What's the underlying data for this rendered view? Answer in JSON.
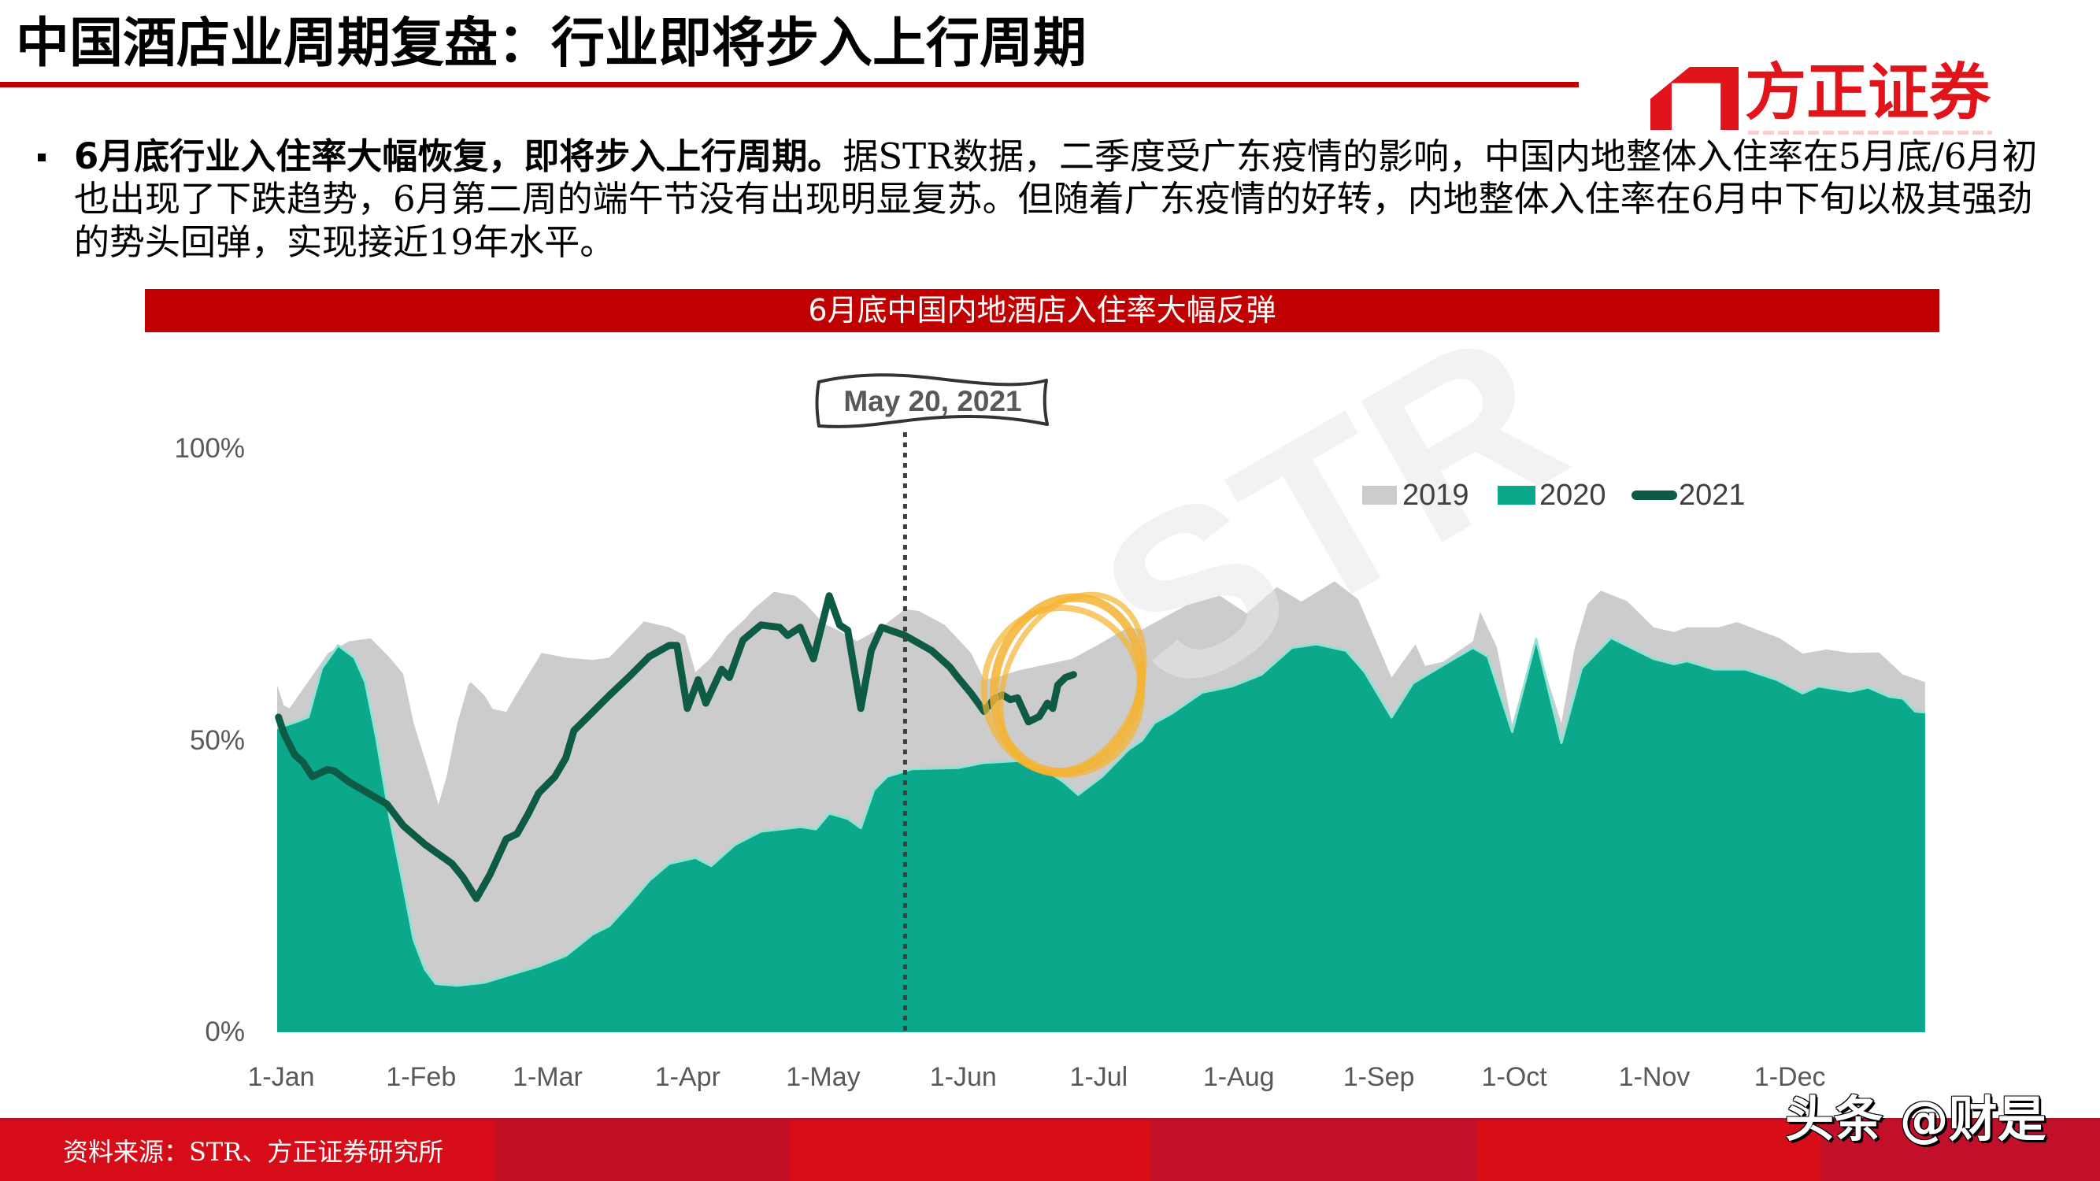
{
  "header": {
    "title": "中国酒店业周期复盘：行业即将步入上行周期",
    "logo_text": "方正证券"
  },
  "bullet": {
    "lines": [
      {
        "lead": "6月底行业入住率大幅恢复，即将步入上行周期。",
        "text": "据STR数据，二季度受广东疫情的影响，中国内地整体入住率在5月底/6月初"
      },
      {
        "text": "也出现了下跌趋势，6月第二周的端午节没有出现明显复苏。但随着广东疫情的好转，内地整体入住率在6月中下旬以极其强劲"
      },
      {
        "text": "的势头回弹，实现接近19年水平。"
      }
    ]
  },
  "chart_panel": {
    "title": "6月底中国内地酒店入住率大幅反弹"
  },
  "chart_data": {
    "type": "area",
    "title": "6月底中国内地酒店入住率大幅反弹",
    "xlabel": "",
    "ylabel": "",
    "x_unit": "day of year (1-Jan = 0)",
    "xlim": [
      0,
      365
    ],
    "ylim": [
      0,
      100
    ],
    "grid": false,
    "legend_position": "top-right",
    "x_ticks": [
      {
        "label": "1-Jan",
        "day": 0
      },
      {
        "label": "1-Feb",
        "day": 31
      },
      {
        "label": "1-Mar",
        "day": 59
      },
      {
        "label": "1-Apr",
        "day": 90
      },
      {
        "label": "1-May",
        "day": 120
      },
      {
        "label": "1-Jun",
        "day": 151
      },
      {
        "label": "1-Jul",
        "day": 181
      },
      {
        "label": "1-Aug",
        "day": 212
      },
      {
        "label": "1-Sep",
        "day": 243
      },
      {
        "label": "1-Oct",
        "day": 273
      },
      {
        "label": "1-Nov",
        "day": 304
      },
      {
        "label": "1-Dec",
        "day": 334
      }
    ],
    "y_ticks": [
      {
        "label": "100%",
        "value": 100
      },
      {
        "label": "50%",
        "value": 50
      },
      {
        "label": "0%",
        "value": 0
      }
    ],
    "series": [
      {
        "name": "2019",
        "style": "area",
        "color": "#CCCCCC",
        "points": [
          [
            0,
            59.5
          ],
          [
            1.5,
            56
          ],
          [
            2.7,
            55.5
          ],
          [
            6.8,
            60
          ],
          [
            11.3,
            65
          ],
          [
            15.9,
            67
          ],
          [
            20.7,
            67.5
          ],
          [
            24.9,
            64.2
          ],
          [
            27.9,
            61.4
          ],
          [
            30.2,
            53
          ],
          [
            33.9,
            43.8
          ],
          [
            35.7,
            39
          ],
          [
            37.5,
            43.8
          ],
          [
            39.9,
            53
          ],
          [
            42.3,
            59.5
          ],
          [
            42.9,
            60
          ],
          [
            45.9,
            57.7
          ],
          [
            47.7,
            55.4
          ],
          [
            50.7,
            54.9
          ],
          [
            53.1,
            58.1
          ],
          [
            57.9,
            64.2
          ],
          [
            58.5,
            65
          ],
          [
            63.9,
            64.2
          ],
          [
            69.9,
            63.8
          ],
          [
            73.5,
            64.2
          ],
          [
            81.2,
            70.4
          ],
          [
            86.8,
            69.4
          ],
          [
            90.3,
            68
          ],
          [
            92.6,
            61.7
          ],
          [
            95.8,
            64
          ],
          [
            99.6,
            68
          ],
          [
            103.5,
            70.8
          ],
          [
            105.4,
            72.5
          ],
          [
            110,
            75.5
          ],
          [
            114.7,
            74.8
          ],
          [
            117,
            73.4
          ],
          [
            121,
            70
          ],
          [
            123.9,
            69
          ],
          [
            128.4,
            67
          ],
          [
            133.8,
            69.4
          ],
          [
            139,
            72.5
          ],
          [
            142,
            72.2
          ],
          [
            147.8,
            69.8
          ],
          [
            153.6,
            65
          ],
          [
            156.5,
            60.4
          ],
          [
            160,
            61
          ],
          [
            164,
            62
          ],
          [
            170,
            63
          ],
          [
            176,
            64
          ],
          [
            182,
            66.5
          ],
          [
            188.4,
            69.4
          ],
          [
            191.4,
            69
          ],
          [
            201.3,
            73.2
          ],
          [
            208.7,
            74.8
          ],
          [
            214.6,
            71.8
          ],
          [
            221.3,
            76.3
          ],
          [
            226.7,
            73.8
          ],
          [
            234.1,
            77.3
          ],
          [
            239.3,
            74.2
          ],
          [
            246.7,
            60.8
          ],
          [
            252,
            66.5
          ],
          [
            254.1,
            62.8
          ],
          [
            258.1,
            63.5
          ],
          [
            264.7,
            67
          ],
          [
            266.3,
            72.1
          ],
          [
            270,
            66
          ],
          [
            273.4,
            52.8
          ],
          [
            276,
            60
          ],
          [
            278.7,
            67.4
          ],
          [
            281.4,
            60
          ],
          [
            284.3,
            53
          ],
          [
            287.2,
            65.8
          ],
          [
            290.1,
            73.4
          ],
          [
            293,
            75.7
          ],
          [
            298.8,
            73.9
          ],
          [
            304.7,
            69.4
          ],
          [
            309.2,
            68.6
          ],
          [
            312.1,
            69.4
          ],
          [
            319.1,
            69.4
          ],
          [
            323.2,
            70.3
          ],
          [
            327.9,
            68.9
          ],
          [
            332.5,
            67.6
          ],
          [
            337.7,
            64.9
          ],
          [
            343,
            65.6
          ],
          [
            348.1,
            65
          ],
          [
            354.6,
            65.1
          ],
          [
            359.9,
            61.3
          ],
          [
            364.8,
            60
          ]
        ]
      },
      {
        "name": "2020",
        "style": "area",
        "color": "#0BA88B",
        "edge_color": "#8FE3D4",
        "points": [
          [
            0,
            52.1
          ],
          [
            3.9,
            53.1
          ],
          [
            6.9,
            54
          ],
          [
            9.9,
            62.4
          ],
          [
            13.5,
            66.3
          ],
          [
            17.1,
            64.2
          ],
          [
            19.5,
            60
          ],
          [
            21.9,
            50.7
          ],
          [
            24.9,
            36.8
          ],
          [
            27.9,
            25.2
          ],
          [
            30.2,
            15.9
          ],
          [
            32.7,
            10.8
          ],
          [
            35.1,
            8.3
          ],
          [
            39.9,
            8
          ],
          [
            45.9,
            8.5
          ],
          [
            51.9,
            9.9
          ],
          [
            57.9,
            11.3
          ],
          [
            63.9,
            13.1
          ],
          [
            69.9,
            16.8
          ],
          [
            73.5,
            18.2
          ],
          [
            78,
            22
          ],
          [
            82.4,
            26
          ],
          [
            86.8,
            28.9
          ],
          [
            92.6,
            29.9
          ],
          [
            96.1,
            28.5
          ],
          [
            101.3,
            32.1
          ],
          [
            107.1,
            34.4
          ],
          [
            115.8,
            35.2
          ],
          [
            119.3,
            34.8
          ],
          [
            122.2,
            37.5
          ],
          [
            126.3,
            36.6
          ],
          [
            129.2,
            35
          ],
          [
            132.1,
            41.5
          ],
          [
            135,
            43.8
          ],
          [
            140.5,
            45.1
          ],
          [
            150.7,
            45.3
          ],
          [
            156.5,
            46.2
          ],
          [
            164,
            46.5
          ],
          [
            169.9,
            45
          ],
          [
            173.9,
            43
          ],
          [
            177.3,
            40.7
          ],
          [
            182.6,
            43.8
          ],
          [
            188.4,
            48.4
          ],
          [
            191.4,
            50
          ],
          [
            194.2,
            53
          ],
          [
            198,
            54.6
          ],
          [
            204.7,
            58.2
          ],
          [
            211.4,
            59.3
          ],
          [
            217.9,
            61.3
          ],
          [
            224.6,
            65.9
          ],
          [
            230.1,
            66.5
          ],
          [
            236.6,
            65.4
          ],
          [
            240.7,
            61.8
          ],
          [
            246.7,
            54
          ],
          [
            251.4,
            59.8
          ],
          [
            258.1,
            62.9
          ],
          [
            264.7,
            65.9
          ],
          [
            268,
            64.4
          ],
          [
            273.4,
            51.5
          ],
          [
            278.7,
            67.4
          ],
          [
            284.3,
            49.6
          ],
          [
            288.8,
            62.4
          ],
          [
            295.3,
            67.6
          ],
          [
            304.7,
            64
          ],
          [
            309.2,
            63.1
          ],
          [
            312.1,
            63.6
          ],
          [
            318.1,
            62.2
          ],
          [
            325,
            62.2
          ],
          [
            332,
            60.4
          ],
          [
            337.7,
            58.1
          ],
          [
            341.2,
            59.3
          ],
          [
            348.2,
            58.4
          ],
          [
            352.2,
            59.1
          ],
          [
            356.9,
            57.5
          ],
          [
            359.9,
            57.2
          ],
          [
            362.6,
            55
          ],
          [
            364.8,
            54.8
          ]
        ]
      },
      {
        "name": "2021",
        "style": "line",
        "color": "#0D5A45",
        "points": [
          [
            0.3,
            54
          ],
          [
            1.5,
            51.2
          ],
          [
            3.9,
            47.5
          ],
          [
            5.7,
            46.3
          ],
          [
            7.8,
            43.8
          ],
          [
            11.1,
            45
          ],
          [
            12.6,
            44.8
          ],
          [
            15.9,
            42.9
          ],
          [
            24.3,
            39.1
          ],
          [
            27.9,
            35.4
          ],
          [
            32.7,
            32.2
          ],
          [
            38.7,
            28.9
          ],
          [
            41.1,
            26.6
          ],
          [
            44.1,
            22.9
          ],
          [
            47.1,
            27
          ],
          [
            50.7,
            33.1
          ],
          [
            53.1,
            34
          ],
          [
            55.5,
            37.3
          ],
          [
            57.9,
            41
          ],
          [
            61.5,
            43.8
          ],
          [
            63.9,
            47
          ],
          [
            65.7,
            51.7
          ],
          [
            68.7,
            54
          ],
          [
            73.5,
            57.7
          ],
          [
            78,
            61
          ],
          [
            82.4,
            64.4
          ],
          [
            86.8,
            66.3
          ],
          [
            88.5,
            66.3
          ],
          [
            90.8,
            55.5
          ],
          [
            93.2,
            60.4
          ],
          [
            94.9,
            56.4
          ],
          [
            98.4,
            62.2
          ],
          [
            100.1,
            60.8
          ],
          [
            103.1,
            67.2
          ],
          [
            107.1,
            69.8
          ],
          [
            111.2,
            69.4
          ],
          [
            113,
            68
          ],
          [
            115.8,
            69.4
          ],
          [
            118.7,
            64
          ],
          [
            122.2,
            74.8
          ],
          [
            124.5,
            69.8
          ],
          [
            126.3,
            68.9
          ],
          [
            129.2,
            55.5
          ],
          [
            131.5,
            65.4
          ],
          [
            133.8,
            69.4
          ],
          [
            139,
            68
          ],
          [
            144.9,
            65.4
          ],
          [
            148.9,
            62.6
          ],
          [
            150.7,
            60.8
          ],
          [
            153.6,
            58.1
          ],
          [
            156.5,
            55
          ],
          [
            158.8,
            57.2
          ],
          [
            160.6,
            57.8
          ],
          [
            162.3,
            57
          ],
          [
            163.9,
            57.3
          ],
          [
            166.3,
            53.2
          ],
          [
            168.7,
            54.1
          ],
          [
            170.5,
            56.4
          ],
          [
            171.7,
            55.5
          ],
          [
            172.8,
            59.5
          ],
          [
            174.5,
            60.8
          ],
          [
            176.3,
            61.3
          ]
        ]
      }
    ],
    "annotations": [
      {
        "type": "vline",
        "label": "May 20, 2021",
        "day": 139,
        "style": "dotted",
        "color": "#3F3F3F"
      },
      {
        "type": "highlight_circle",
        "day": 175,
        "value": 59,
        "color": "#F5B331"
      }
    ],
    "watermark": "STR"
  },
  "footer": {
    "source": "资料来源：STR、方正证券研究所",
    "platform_watermark": "头条 @财是"
  }
}
